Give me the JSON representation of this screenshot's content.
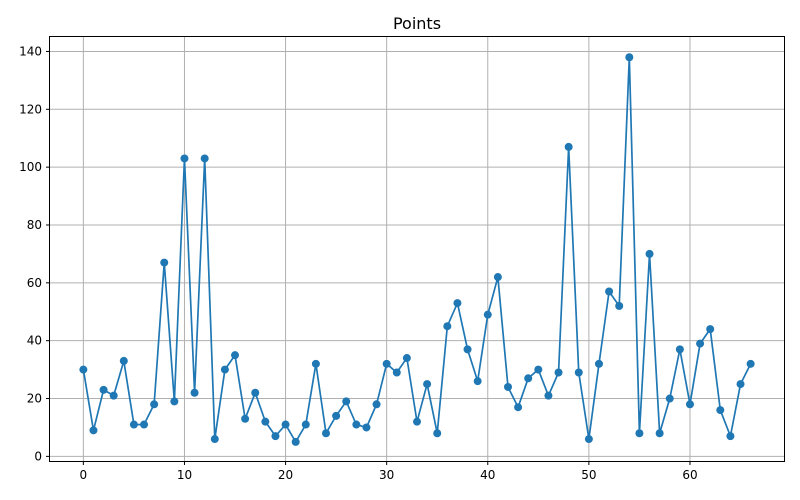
{
  "chart_data": {
    "type": "line",
    "title": "Points",
    "xlabel": "",
    "ylabel": "",
    "xlim": [
      -3.3,
      69.3
    ],
    "ylim": [
      -1.6,
      145
    ],
    "grid": true,
    "xticks": [
      0,
      10,
      20,
      30,
      40,
      50,
      60
    ],
    "yticks": [
      0,
      20,
      40,
      60,
      80,
      100,
      120,
      140
    ],
    "marker": "circle",
    "color": "#1f77b4",
    "series": [
      {
        "x": [
          0,
          1,
          2,
          3,
          4,
          5,
          6,
          7,
          8,
          9,
          10,
          11,
          12,
          13,
          14,
          15,
          16,
          17,
          18,
          19,
          20,
          21,
          22,
          23,
          24,
          25,
          26,
          27,
          28,
          29,
          30,
          31,
          32,
          33,
          34,
          35,
          36,
          37,
          38,
          39,
          40,
          41,
          42,
          43,
          44,
          45,
          46,
          47,
          48,
          49,
          50,
          51,
          52,
          53,
          54,
          55,
          56,
          57,
          58,
          59,
          60,
          61,
          62,
          63,
          64,
          65,
          66
        ],
        "values": [
          30,
          9,
          23,
          21,
          33,
          11,
          11,
          18,
          67,
          19,
          103,
          22,
          103,
          6,
          30,
          35,
          13,
          22,
          12,
          7,
          11,
          5,
          11,
          32,
          8,
          14,
          19,
          11,
          10,
          18,
          32,
          29,
          34,
          12,
          25,
          8,
          45,
          53,
          37,
          26,
          49,
          62,
          24,
          17,
          27,
          30,
          21,
          29,
          107,
          29,
          6,
          32,
          57,
          52,
          138,
          8,
          70,
          8,
          20,
          37,
          18,
          39,
          44,
          16,
          7,
          25,
          32
        ]
      }
    ]
  }
}
